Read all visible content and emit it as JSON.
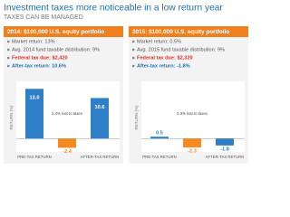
{
  "title": "Investment taxes more noticeable in a low return year",
  "subtitle": "TAXES CAN BE MANAGED",
  "chart_data": [
    {
      "type": "bar",
      "title": "2014: $100,000 U.S. equity portfolio",
      "notes": [
        "Market return: 13%",
        "Avg. 2014 fund taxable distribution: 9%",
        "Federal tax due: $2,420",
        "After-tax return: 10.6%"
      ],
      "y_label": "RETURN (%)",
      "categories": [
        "PRE-TAX RETURN",
        null,
        "AFTER-TAX RETURN"
      ],
      "values": [
        13.0,
        -2.4,
        10.6
      ],
      "value_labels": [
        "13.0",
        "-2.4",
        "10.6"
      ],
      "colors": [
        "#2f7fc8",
        "#f58a1f",
        "#2f7fc8"
      ],
      "annotation": "2.4% lost to taxes",
      "ylim": [
        -3,
        14
      ]
    },
    {
      "type": "bar",
      "title": "2015: $100,000 U.S. equity portfolio",
      "notes": [
        "Market return: 0.5%",
        "Avg. 2015 fund taxable distribution: 9%",
        "Federal tax due: $2,320",
        "After-tax return: -1.8%"
      ],
      "y_label": "RETURN (%)",
      "categories": [
        "PRE-TAX RETURN",
        null,
        "AFTER-TAX RETURN"
      ],
      "values": [
        0.5,
        -2.3,
        -1.8
      ],
      "value_labels": [
        "0.5",
        "-2.3",
        "-1.8"
      ],
      "colors": [
        "#2f7fc8",
        "#f58a1f",
        "#2f7fc8"
      ],
      "annotation": "2.3% lost to taxes",
      "ylim": [
        -3,
        14
      ]
    }
  ]
}
